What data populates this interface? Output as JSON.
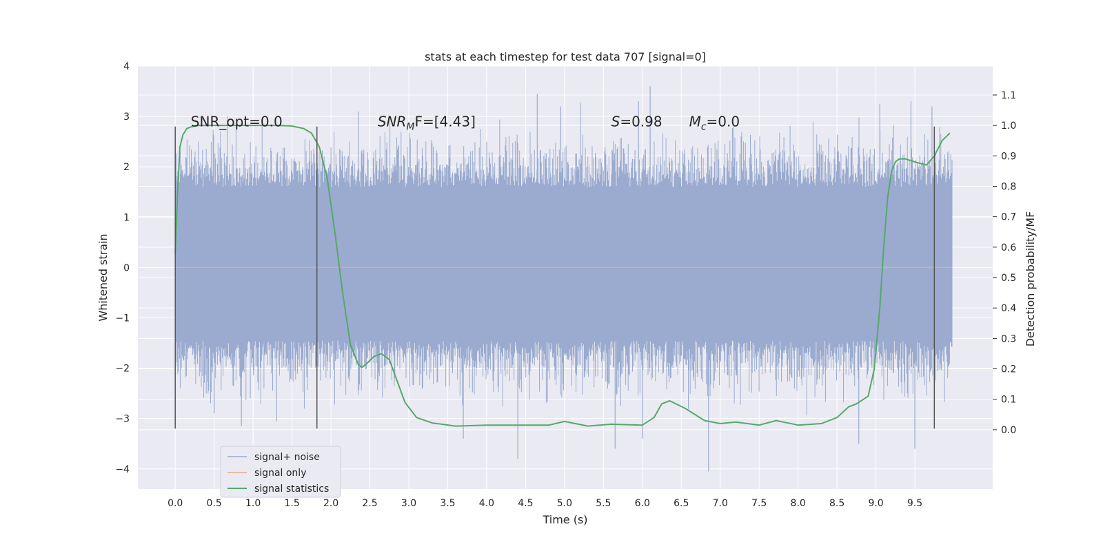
{
  "chart_data": {
    "type": "line",
    "title": "stats at each timestep for test data 707 [signal=0]",
    "xlabel": "Time (s)",
    "ylabel": "Whitened strain",
    "y2label": "Detection probability/MF",
    "xlim": [
      -0.48,
      10.5
    ],
    "ylim": [
      -4.4,
      4.0
    ],
    "y2lim": [
      -0.195,
      1.195
    ],
    "x_ticks": [
      "0.0",
      "0.5",
      "1.0",
      "1.5",
      "2.0",
      "2.5",
      "3.0",
      "3.5",
      "4.0",
      "4.5",
      "5.0",
      "5.5",
      "6.0",
      "6.5",
      "7.0",
      "7.5",
      "8.0",
      "8.5",
      "9.0",
      "9.5"
    ],
    "y_ticks": [
      "4",
      "3",
      "2",
      "1",
      "0",
      "−1",
      "−2",
      "−3",
      "−4"
    ],
    "y2_ticks": [
      "1.1",
      "1.0",
      "0.9",
      "0.8",
      "0.7",
      "0.6",
      "0.5",
      "0.4",
      "0.3",
      "0.2",
      "0.1",
      "0.0"
    ],
    "grid": true,
    "legend_position": "bottom-left",
    "noise": {
      "x_range": [
        0.0,
        9.98
      ],
      "core_band": [
        -1.45,
        1.6
      ],
      "spikes": [
        {
          "x": 4.4,
          "y": -3.8
        },
        {
          "x": 6.85,
          "y": -4.05
        },
        {
          "x": 8.78,
          "y": -3.5
        },
        {
          "x": 9.5,
          "y": -3.6
        },
        {
          "x": 3.7,
          "y": -3.4
        },
        {
          "x": 5.65,
          "y": -3.6
        },
        {
          "x": 6.0,
          "y": -3.4
        },
        {
          "x": 0.85,
          "y": -3.15
        },
        {
          "x": 1.3,
          "y": -3.05
        },
        {
          "x": 6.1,
          "y": 3.6
        },
        {
          "x": 4.65,
          "y": 3.45
        },
        {
          "x": 9.45,
          "y": 3.3
        },
        {
          "x": 9.72,
          "y": 3.2
        },
        {
          "x": 5.95,
          "y": 3.3
        },
        {
          "x": 9.05,
          "y": 3.25
        },
        {
          "x": 2.35,
          "y": 3.1
        },
        {
          "x": 4.95,
          "y": 3.2
        },
        {
          "x": 0.5,
          "y": -2.9
        }
      ]
    },
    "series": [
      {
        "name": "signal+ noise",
        "color": "#9aabcf",
        "axis": "left",
        "kind": "noise"
      },
      {
        "name": "signal only",
        "color": "#e3a98d",
        "axis": "left",
        "x": [
          0.0,
          9.98
        ],
        "y": [
          0.0,
          0.0
        ]
      },
      {
        "name": "signal statistics",
        "color": "#55a868",
        "axis": "right",
        "x": [
          0.0,
          0.03,
          0.06,
          0.1,
          0.15,
          0.2,
          0.3,
          0.5,
          1.0,
          1.3,
          1.5,
          1.65,
          1.75,
          1.85,
          1.95,
          2.05,
          2.15,
          2.25,
          2.35,
          2.4,
          2.45,
          2.55,
          2.65,
          2.75,
          2.85,
          2.95,
          3.1,
          3.3,
          3.6,
          4.0,
          4.5,
          4.8,
          5.0,
          5.3,
          5.6,
          6.0,
          6.15,
          6.25,
          6.35,
          6.55,
          6.8,
          7.0,
          7.2,
          7.5,
          7.72,
          8.0,
          8.3,
          8.5,
          8.65,
          8.75,
          8.9,
          8.98,
          9.05,
          9.1,
          9.15,
          9.2,
          9.25,
          9.3,
          9.38,
          9.5,
          9.65,
          9.75,
          9.85,
          9.95
        ],
        "y": [
          0.58,
          0.78,
          0.93,
          0.97,
          0.99,
          0.995,
          1.0,
          1.0,
          1.0,
          1.0,
          0.998,
          0.99,
          0.975,
          0.93,
          0.83,
          0.65,
          0.45,
          0.28,
          0.215,
          0.205,
          0.215,
          0.24,
          0.25,
          0.23,
          0.16,
          0.09,
          0.04,
          0.022,
          0.012,
          0.015,
          0.015,
          0.015,
          0.027,
          0.012,
          0.018,
          0.015,
          0.04,
          0.085,
          0.095,
          0.07,
          0.03,
          0.02,
          0.025,
          0.015,
          0.03,
          0.015,
          0.02,
          0.04,
          0.075,
          0.085,
          0.11,
          0.2,
          0.4,
          0.6,
          0.76,
          0.85,
          0.88,
          0.89,
          0.89,
          0.88,
          0.87,
          0.9,
          0.95,
          0.975
        ]
      }
    ],
    "vlines": [
      {
        "x": 0.0,
        "y": [
          -3.2,
          2.8
        ]
      },
      {
        "x": 1.82,
        "y": [
          -3.2,
          2.8
        ]
      },
      {
        "x": 9.75,
        "y": [
          -3.2,
          2.8
        ]
      }
    ],
    "annotations": [
      {
        "id": "snr-opt",
        "text": "SNR_opt=0.0",
        "x": 0.2,
        "y": 2.8
      },
      {
        "id": "snr-mf",
        "base": "SNR",
        "sub": "M",
        "rest": "F=[4.43]",
        "x": 2.6,
        "y": 2.8
      },
      {
        "id": "s-stat",
        "base": "S",
        "rest": "=0.98",
        "x": 5.6,
        "y": 2.8
      },
      {
        "id": "mc",
        "base": "M",
        "sub": "c",
        "rest": "=0.0",
        "x": 6.6,
        "y": 2.8
      }
    ]
  }
}
